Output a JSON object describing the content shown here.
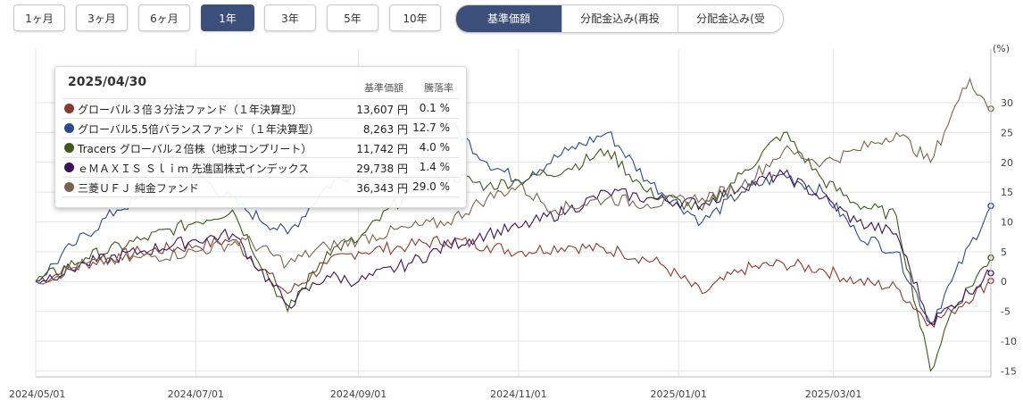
{
  "period_buttons": [
    {
      "label": "1ヶ月",
      "active": false
    },
    {
      "label": "3ヶ月",
      "active": false
    },
    {
      "label": "6ヶ月",
      "active": false
    },
    {
      "label": "1年",
      "active": true
    },
    {
      "label": "3年",
      "active": false
    },
    {
      "label": "5年",
      "active": false
    },
    {
      "label": "10年",
      "active": false
    }
  ],
  "mode_tabs": [
    {
      "label": "基準価額",
      "active": true
    },
    {
      "label": "分配金込み(再投資)",
      "active": false
    },
    {
      "label": "分配金込み(受取)",
      "active": false
    }
  ],
  "tooltip": {
    "date": "2025/04/30",
    "col_price": "基準価額",
    "col_drawdown": "騰落率",
    "rows": [
      {
        "name": "グローバル３倍３分法ファンド（１年決算型）",
        "price": "13,607 円",
        "change": "0.1 %",
        "color": "#8b3a2f"
      },
      {
        "name": "グローバル5.5倍バランスファンド（１年決算型）",
        "price": "8,263 円",
        "change": "12.7 %",
        "color": "#2c4a8c"
      },
      {
        "name": "Tracers グローバル２倍株（地球コンプリート）",
        "price": "11,742 円",
        "change": "4.0 %",
        "color": "#3d5a1a"
      },
      {
        "name": "ｅＭＡＸＩＳ Ｓｌｉｍ 先進国株式インデックス",
        "price": "29,738 円",
        "change": "1.4 %",
        "color": "#3f1457"
      },
      {
        "name": "三菱ＵＦＪ 純金ファンド",
        "price": "36,343 円",
        "change": "29.0 %",
        "color": "#7a6450"
      }
    ]
  },
  "chart_data": {
    "type": "line",
    "title": "",
    "xlabel": "",
    "ylabel": "",
    "y_unit": "(%)",
    "ylim": [
      -16,
      39
    ],
    "y_ticks": [
      30,
      25,
      20,
      15,
      10,
      5,
      0,
      -5,
      -10,
      -15
    ],
    "x_ticks": [
      "2024/05/01",
      "2024/07/01",
      "2024/09/01",
      "2024/11/01",
      "2025/01/01",
      "2025/03/01"
    ],
    "x_range": [
      "2024/05/01",
      "2025/04/30"
    ],
    "grid": true,
    "series": [
      {
        "name": "グローバル３倍３分法ファンド（１年決算型）",
        "color": "#8b3a2f",
        "points": [
          [
            "2024/05/01",
            0
          ],
          [
            "2024/05/20",
            3
          ],
          [
            "2024/06/10",
            5
          ],
          [
            "2024/07/01",
            6
          ],
          [
            "2024/07/15",
            7
          ],
          [
            "2024/08/05",
            -2
          ],
          [
            "2024/08/20",
            3
          ],
          [
            "2024/09/01",
            5
          ],
          [
            "2024/09/20",
            6
          ],
          [
            "2024/10/05",
            7
          ],
          [
            "2024/10/20",
            6
          ],
          [
            "2024/11/01",
            5
          ],
          [
            "2024/11/20",
            6
          ],
          [
            "2024/12/10",
            5
          ],
          [
            "2024/12/25",
            3
          ],
          [
            "2025/01/10",
            -2
          ],
          [
            "2025/01/25",
            2
          ],
          [
            "2025/02/10",
            3
          ],
          [
            "2025/02/25",
            2
          ],
          [
            "2025/03/10",
            0
          ],
          [
            "2025/03/25",
            -1
          ],
          [
            "2025/04/07",
            -7
          ],
          [
            "2025/04/15",
            -5
          ],
          [
            "2025/04/30",
            0.1
          ]
        ]
      },
      {
        "name": "グローバル5.5倍バランスファンド（１年決算型）",
        "color": "#2c4a8c",
        "points": [
          [
            "2024/05/01",
            0
          ],
          [
            "2024/05/15",
            6
          ],
          [
            "2024/06/01",
            12
          ],
          [
            "2024/06/20",
            16
          ],
          [
            "2024/07/01",
            18
          ],
          [
            "2024/07/20",
            12
          ],
          [
            "2024/08/05",
            8
          ],
          [
            "2024/08/20",
            16
          ],
          [
            "2024/09/01",
            19
          ],
          [
            "2024/09/20",
            24
          ],
          [
            "2024/10/05",
            27
          ],
          [
            "2024/10/20",
            20
          ],
          [
            "2024/11/01",
            17
          ],
          [
            "2024/11/20",
            22
          ],
          [
            "2024/12/05",
            25
          ],
          [
            "2024/12/20",
            17
          ],
          [
            "2025/01/10",
            10
          ],
          [
            "2025/01/25",
            15
          ],
          [
            "2025/02/10",
            18
          ],
          [
            "2025/02/25",
            15
          ],
          [
            "2025/03/10",
            8
          ],
          [
            "2025/03/25",
            5
          ],
          [
            "2025/04/07",
            -7
          ],
          [
            "2025/04/15",
            0
          ],
          [
            "2025/04/30",
            12.7
          ]
        ]
      },
      {
        "name": "Tracers グローバル２倍株（地球コンプリート）",
        "color": "#3d5a1a",
        "points": [
          [
            "2024/05/01",
            0
          ],
          [
            "2024/05/20",
            4
          ],
          [
            "2024/06/10",
            7
          ],
          [
            "2024/07/01",
            10
          ],
          [
            "2024/07/15",
            12
          ],
          [
            "2024/08/05",
            -5
          ],
          [
            "2024/08/20",
            5
          ],
          [
            "2024/09/01",
            7
          ],
          [
            "2024/09/20",
            15
          ],
          [
            "2024/10/05",
            18
          ],
          [
            "2024/10/20",
            16
          ],
          [
            "2024/11/01",
            17
          ],
          [
            "2024/11/20",
            19
          ],
          [
            "2024/12/05",
            22
          ],
          [
            "2024/12/20",
            15
          ],
          [
            "2025/01/10",
            12
          ],
          [
            "2025/01/25",
            18
          ],
          [
            "2025/02/10",
            25
          ],
          [
            "2025/02/25",
            17
          ],
          [
            "2025/03/10",
            13
          ],
          [
            "2025/03/25",
            11
          ],
          [
            "2025/04/07",
            -15
          ],
          [
            "2025/04/15",
            -5
          ],
          [
            "2025/04/30",
            4.0
          ]
        ]
      },
      {
        "name": "ｅＭＡＸＩＳ Ｓｌｉｍ 先進国株式インデックス",
        "color": "#3f1457",
        "points": [
          [
            "2024/05/01",
            0
          ],
          [
            "2024/05/20",
            3
          ],
          [
            "2024/06/10",
            5
          ],
          [
            "2024/07/01",
            7
          ],
          [
            "2024/07/15",
            8
          ],
          [
            "2024/08/05",
            -4
          ],
          [
            "2024/08/20",
            1
          ],
          [
            "2024/09/01",
            0
          ],
          [
            "2024/09/20",
            3
          ],
          [
            "2024/10/05",
            6
          ],
          [
            "2024/10/20",
            8
          ],
          [
            "2024/11/01",
            9
          ],
          [
            "2024/11/20",
            12
          ],
          [
            "2024/12/05",
            15
          ],
          [
            "2024/12/20",
            14
          ],
          [
            "2025/01/10",
            13
          ],
          [
            "2025/01/25",
            16
          ],
          [
            "2025/02/10",
            18
          ],
          [
            "2025/02/25",
            14
          ],
          [
            "2025/03/10",
            10
          ],
          [
            "2025/03/25",
            8
          ],
          [
            "2025/04/07",
            -7
          ],
          [
            "2025/04/15",
            -4
          ],
          [
            "2025/04/30",
            1.4
          ]
        ]
      },
      {
        "name": "三菱ＵＦＪ 純金ファンド",
        "color": "#7a6450",
        "points": [
          [
            "2024/05/01",
            0
          ],
          [
            "2024/05/20",
            3
          ],
          [
            "2024/06/10",
            4
          ],
          [
            "2024/07/01",
            5
          ],
          [
            "2024/07/20",
            7
          ],
          [
            "2024/08/05",
            3
          ],
          [
            "2024/08/20",
            6
          ],
          [
            "2024/09/01",
            7
          ],
          [
            "2024/09/20",
            9
          ],
          [
            "2024/10/05",
            10
          ],
          [
            "2024/10/20",
            14
          ],
          [
            "2024/11/01",
            16
          ],
          [
            "2024/11/15",
            12
          ],
          [
            "2024/12/05",
            14
          ],
          [
            "2024/12/20",
            13
          ],
          [
            "2025/01/10",
            14
          ],
          [
            "2025/01/25",
            16
          ],
          [
            "2025/02/10",
            22
          ],
          [
            "2025/02/25",
            20
          ],
          [
            "2025/03/10",
            22
          ],
          [
            "2025/03/25",
            25
          ],
          [
            "2025/04/07",
            20
          ],
          [
            "2025/04/15",
            28
          ],
          [
            "2025/04/22",
            34
          ],
          [
            "2025/04/30",
            29.0
          ]
        ]
      }
    ]
  }
}
